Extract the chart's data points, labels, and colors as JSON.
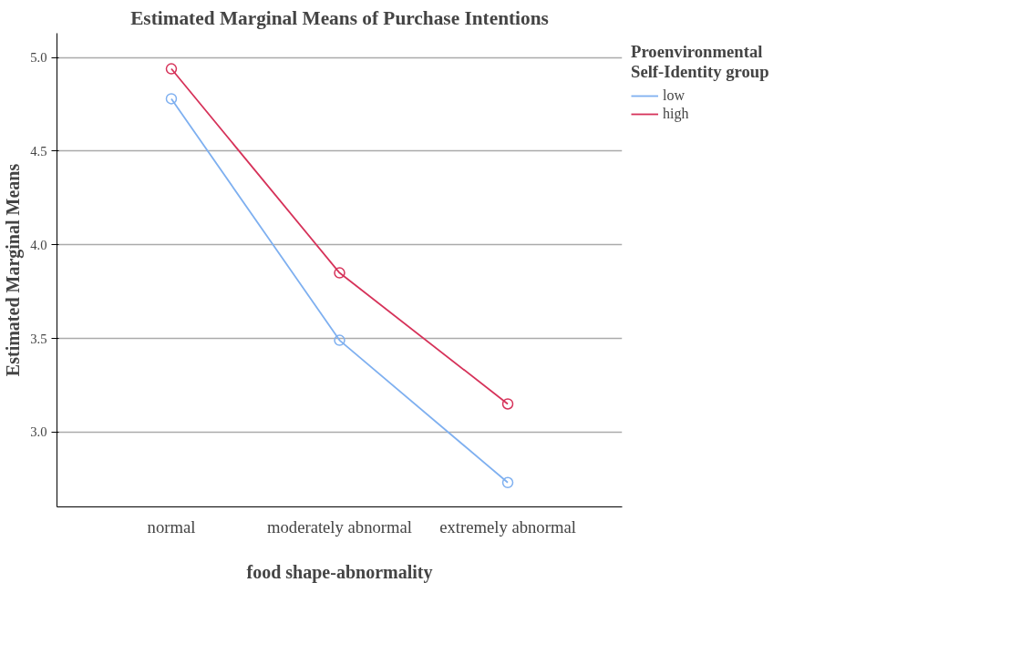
{
  "chart_data": {
    "type": "line",
    "title": "Estimated Marginal Means of Purchase Intentions",
    "xlabel": "food shape-abnormality",
    "ylabel": "Estimated Marginal Means",
    "legend_title": "Proenvironmental Self-Identity group",
    "categories": [
      "normal",
      "moderately abnormal",
      "extremely abnormal"
    ],
    "series": [
      {
        "name": "low",
        "color": "#7fb0f0",
        "values": [
          4.78,
          3.49,
          2.73
        ]
      },
      {
        "name": "high",
        "color": "#d6335a",
        "values": [
          4.94,
          3.85,
          3.15
        ]
      }
    ],
    "ylim": [
      2.6,
      5.13
    ],
    "yticks": [
      {
        "value": 3.0,
        "label": "3.0"
      },
      {
        "value": 3.5,
        "label": "3.5"
      },
      {
        "value": 4.0,
        "label": "4.0"
      },
      {
        "value": 4.5,
        "label": "4.5"
      },
      {
        "value": 5.0,
        "label": "5.0"
      }
    ],
    "grid": "y",
    "legend": "top right",
    "marker": "circle",
    "line_style": "solid"
  }
}
